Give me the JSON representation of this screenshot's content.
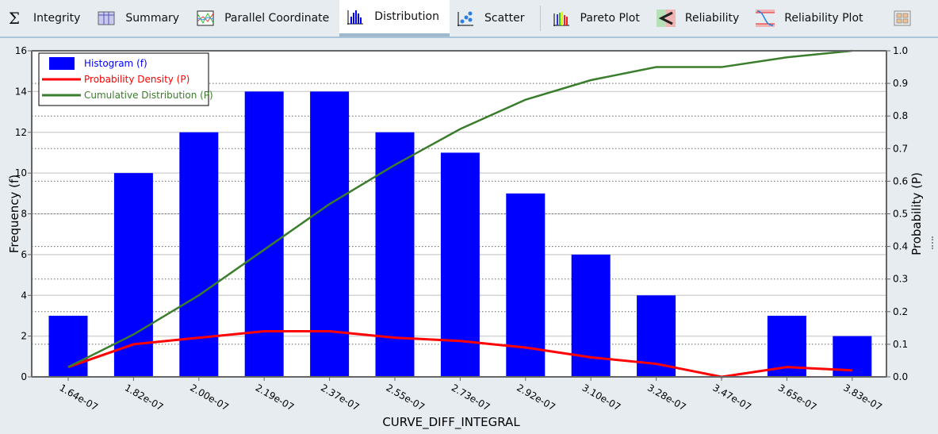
{
  "tabs": [
    {
      "label": "Integrity",
      "icon": "sigma-icon"
    },
    {
      "label": "Summary",
      "icon": "table-icon"
    },
    {
      "label": "Parallel Coordinate",
      "icon": "parallel-coordinate-icon"
    },
    {
      "label": "Distribution",
      "icon": "histogram-icon",
      "active": true
    },
    {
      "label": "Scatter",
      "icon": "scatter-icon"
    },
    {
      "label": "Pareto Plot",
      "icon": "pareto-icon"
    },
    {
      "label": "Reliability",
      "icon": "reliability-icon"
    },
    {
      "label": "Reliability Plot",
      "icon": "reliability-plot-icon"
    },
    {
      "label": "",
      "icon": "layout-grid-icon"
    }
  ],
  "chart_data": {
    "type": "bar",
    "xlabel": "CURVE_DIFF_INTEGRAL",
    "ylabel": "Frequency (f)",
    "y2label": "Probability (P)",
    "categories": [
      "1.64e-07",
      "1.82e-07",
      "2.00e-07",
      "2.19e-07",
      "2.37e-07",
      "2.55e-07",
      "2.73e-07",
      "2.92e-07",
      "3.10e-07",
      "3.28e-07",
      "3.47e-07",
      "3.65e-07",
      "3.83e-07"
    ],
    "ylim": [
      0,
      16
    ],
    "yticks": [
      0,
      2,
      4,
      6,
      8,
      10,
      12,
      14,
      16
    ],
    "y2lim": [
      0,
      1.0
    ],
    "y2ticks": [
      "0.0",
      "0.1",
      "0.2",
      "0.3",
      "0.4",
      "0.5",
      "0.6",
      "0.7",
      "0.8",
      "0.9",
      "1.0"
    ],
    "grid": true,
    "legend_placement": "top-left",
    "series": [
      {
        "name": "Histogram (f)",
        "type": "bar",
        "axis": "left",
        "color": "#0000ff",
        "values": [
          3,
          10,
          12,
          14,
          14,
          12,
          11,
          9,
          6,
          4,
          0,
          3,
          2
        ]
      },
      {
        "name": "Probability Density (P)",
        "type": "line",
        "axis": "right",
        "color": "#ff0000",
        "values": [
          0.03,
          0.1,
          0.12,
          0.14,
          0.14,
          0.12,
          0.11,
          0.09,
          0.06,
          0.04,
          0.0,
          0.03,
          0.02
        ]
      },
      {
        "name": "Cumulative Distribution (P)",
        "type": "line",
        "axis": "right",
        "color": "#3a7d2c",
        "values": [
          0.03,
          0.13,
          0.25,
          0.39,
          0.53,
          0.65,
          0.76,
          0.85,
          0.91,
          0.95,
          0.95,
          0.98,
          1.0
        ]
      }
    ]
  }
}
